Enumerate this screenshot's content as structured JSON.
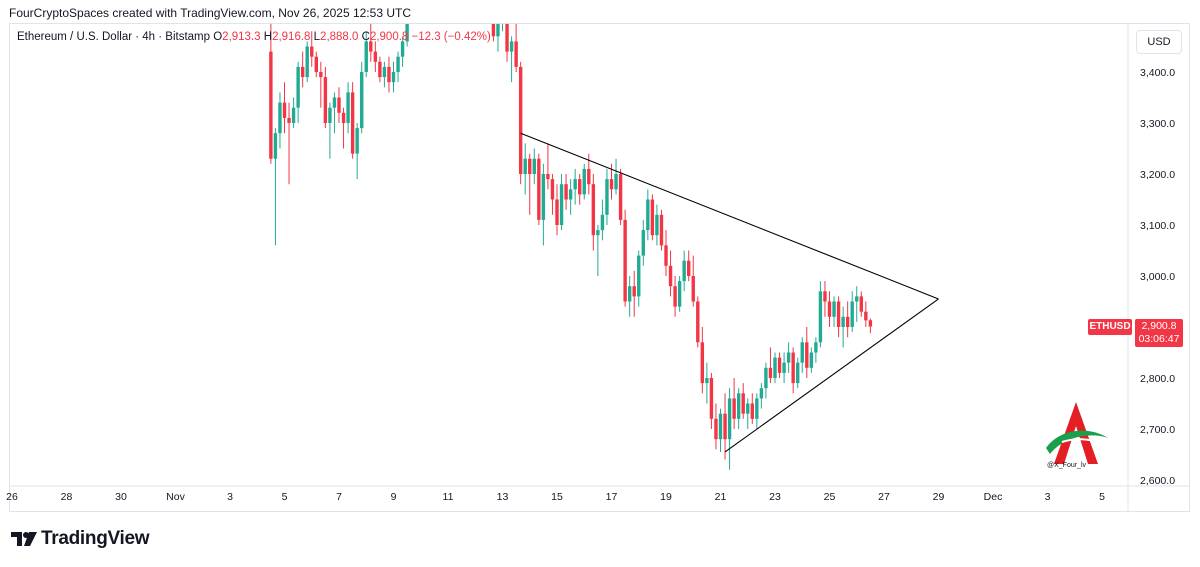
{
  "header": {
    "attribution": "FourCryptoSpaces created with TradingView.com, Nov 26, 2025 12:53 UTC"
  },
  "legend": {
    "symbol": "Ethereum / U.S. Dollar · 4h · Bitstamp",
    "o_label": "O",
    "o_value": "2,913.3",
    "h_label": "H",
    "h_value": "2,916.8",
    "l_label": "L",
    "l_value": "2,888.0",
    "c_label": "C",
    "c_value": "2,900.8",
    "change": "−12.3 (−0.42%)"
  },
  "currency_button": "USD",
  "last_price": {
    "ticker": "ETHUSD",
    "price": "2,900.8",
    "countdown": "03:06:47"
  },
  "watermark_handle": "@X_Four_lv",
  "brand": "TradingView",
  "colors": {
    "up": "#22ab94",
    "down": "#f23645",
    "axis_text": "#131722",
    "trendline": "#000000"
  },
  "chart_data": {
    "type": "candlestick",
    "timeframe": "4h",
    "ylim": [
      2580,
      3500
    ],
    "y_ticks": [
      2600,
      2700,
      2800,
      2900,
      3000,
      3100,
      3200,
      3300,
      3400
    ],
    "y_tick_labels": [
      "2,600.0",
      "2,700.0",
      "2,800.0",
      "2,900.0",
      "3,000.0",
      "3,100.0",
      "3,200.0",
      "3,300.0",
      "3,400.0"
    ],
    "x_ticks": [
      "26",
      "28",
      "30",
      "Nov",
      "3",
      "5",
      "7",
      "9",
      "11",
      "13",
      "15",
      "17",
      "19",
      "21",
      "23",
      "25",
      "27",
      "29",
      "Dec",
      "3",
      "5"
    ],
    "x_tick_dates": [
      "2025-10-26",
      "2025-10-28",
      "2025-10-30",
      "2025-11-01",
      "2025-11-03",
      "2025-11-05",
      "2025-11-07",
      "2025-11-09",
      "2025-11-11",
      "2025-11-13",
      "2025-11-15",
      "2025-11-17",
      "2025-11-19",
      "2025-11-21",
      "2025-11-23",
      "2025-11-25",
      "2025-11-27",
      "2025-11-29",
      "2025-12-01",
      "2025-12-03",
      "2025-12-05"
    ],
    "annotations": [
      {
        "type": "trendline",
        "label": "upper",
        "from": {
          "date": "2025-11-13 16:00",
          "price": 3280
        },
        "to": {
          "date": "2025-11-29 00:00",
          "price": 2955
        }
      },
      {
        "type": "trendline",
        "label": "lower",
        "from": {
          "date": "2025-11-21 04:00",
          "price": 2655
        },
        "to": {
          "date": "2025-11-29 00:00",
          "price": 2955
        }
      }
    ],
    "candles": [
      {
        "t": "2025-11-04 12:00",
        "o": 3440,
        "h": 3550,
        "l": 3220,
        "c": 3230
      },
      {
        "t": "2025-11-04 16:00",
        "o": 3230,
        "h": 3290,
        "l": 3060,
        "c": 3280
      },
      {
        "t": "2025-11-04 20:00",
        "o": 3280,
        "h": 3360,
        "l": 3250,
        "c": 3340
      },
      {
        "t": "2025-11-05 00:00",
        "o": 3340,
        "h": 3380,
        "l": 3280,
        "c": 3310
      },
      {
        "t": "2025-11-05 04:00",
        "o": 3310,
        "h": 3340,
        "l": 3180,
        "c": 3300
      },
      {
        "t": "2025-11-05 08:00",
        "o": 3300,
        "h": 3350,
        "l": 3290,
        "c": 3330
      },
      {
        "t": "2025-11-05 12:00",
        "o": 3330,
        "h": 3420,
        "l": 3300,
        "c": 3410
      },
      {
        "t": "2025-11-05 16:00",
        "o": 3410,
        "h": 3440,
        "l": 3370,
        "c": 3390
      },
      {
        "t": "2025-11-05 20:00",
        "o": 3390,
        "h": 3460,
        "l": 3380,
        "c": 3450
      },
      {
        "t": "2025-11-06 00:00",
        "o": 3450,
        "h": 3480,
        "l": 3410,
        "c": 3430
      },
      {
        "t": "2025-11-06 04:00",
        "o": 3430,
        "h": 3440,
        "l": 3390,
        "c": 3400
      },
      {
        "t": "2025-11-06 08:00",
        "o": 3400,
        "h": 3420,
        "l": 3330,
        "c": 3390
      },
      {
        "t": "2025-11-06 12:00",
        "o": 3390,
        "h": 3410,
        "l": 3290,
        "c": 3300
      },
      {
        "t": "2025-11-06 16:00",
        "o": 3300,
        "h": 3340,
        "l": 3230,
        "c": 3330
      },
      {
        "t": "2025-11-06 20:00",
        "o": 3330,
        "h": 3360,
        "l": 3280,
        "c": 3350
      },
      {
        "t": "2025-11-07 00:00",
        "o": 3350,
        "h": 3370,
        "l": 3300,
        "c": 3320
      },
      {
        "t": "2025-11-07 04:00",
        "o": 3320,
        "h": 3330,
        "l": 3250,
        "c": 3300
      },
      {
        "t": "2025-11-07 08:00",
        "o": 3300,
        "h": 3380,
        "l": 3280,
        "c": 3360
      },
      {
        "t": "2025-11-07 12:00",
        "o": 3360,
        "h": 3380,
        "l": 3230,
        "c": 3240
      },
      {
        "t": "2025-11-07 16:00",
        "o": 3240,
        "h": 3300,
        "l": 3190,
        "c": 3290
      },
      {
        "t": "2025-11-07 20:00",
        "o": 3290,
        "h": 3420,
        "l": 3280,
        "c": 3400
      },
      {
        "t": "2025-11-08 00:00",
        "o": 3400,
        "h": 3480,
        "l": 3390,
        "c": 3460
      },
      {
        "t": "2025-11-08 04:00",
        "o": 3460,
        "h": 3500,
        "l": 3420,
        "c": 3440
      },
      {
        "t": "2025-11-08 08:00",
        "o": 3440,
        "h": 3460,
        "l": 3400,
        "c": 3420
      },
      {
        "t": "2025-11-08 12:00",
        "o": 3420,
        "h": 3430,
        "l": 3380,
        "c": 3390
      },
      {
        "t": "2025-11-08 16:00",
        "o": 3390,
        "h": 3420,
        "l": 3370,
        "c": 3410
      },
      {
        "t": "2025-11-08 20:00",
        "o": 3410,
        "h": 3430,
        "l": 3360,
        "c": 3380
      },
      {
        "t": "2025-11-09 00:00",
        "o": 3380,
        "h": 3420,
        "l": 3360,
        "c": 3400
      },
      {
        "t": "2025-11-09 04:00",
        "o": 3400,
        "h": 3440,
        "l": 3380,
        "c": 3430
      },
      {
        "t": "2025-11-09 08:00",
        "o": 3430,
        "h": 3470,
        "l": 3410,
        "c": 3460
      },
      {
        "t": "2025-11-09 12:00",
        "o": 3460,
        "h": 3540,
        "l": 3450,
        "c": 3520
      },
      {
        "t": "2025-11-12 16:00",
        "o": 3520,
        "h": 3560,
        "l": 3460,
        "c": 3470
      },
      {
        "t": "2025-11-12 20:00",
        "o": 3470,
        "h": 3520,
        "l": 3440,
        "c": 3500
      },
      {
        "t": "2025-11-13 00:00",
        "o": 3500,
        "h": 3540,
        "l": 3480,
        "c": 3510
      },
      {
        "t": "2025-11-13 04:00",
        "o": 3510,
        "h": 3530,
        "l": 3420,
        "c": 3440
      },
      {
        "t": "2025-11-13 08:00",
        "o": 3440,
        "h": 3470,
        "l": 3380,
        "c": 3460
      },
      {
        "t": "2025-11-13 12:00",
        "o": 3460,
        "h": 3500,
        "l": 3400,
        "c": 3410
      },
      {
        "t": "2025-11-13 16:00",
        "o": 3410,
        "h": 3420,
        "l": 3180,
        "c": 3200
      },
      {
        "t": "2025-11-13 20:00",
        "o": 3200,
        "h": 3260,
        "l": 3160,
        "c": 3230
      },
      {
        "t": "2025-11-14 00:00",
        "o": 3230,
        "h": 3240,
        "l": 3120,
        "c": 3200
      },
      {
        "t": "2025-11-14 04:00",
        "o": 3200,
        "h": 3250,
        "l": 3180,
        "c": 3230
      },
      {
        "t": "2025-11-14 08:00",
        "o": 3230,
        "h": 3240,
        "l": 3100,
        "c": 3110
      },
      {
        "t": "2025-11-14 12:00",
        "o": 3110,
        "h": 3220,
        "l": 3060,
        "c": 3200
      },
      {
        "t": "2025-11-14 16:00",
        "o": 3200,
        "h": 3260,
        "l": 3170,
        "c": 3190
      },
      {
        "t": "2025-11-14 20:00",
        "o": 3190,
        "h": 3200,
        "l": 3120,
        "c": 3150
      },
      {
        "t": "2025-11-15 00:00",
        "o": 3150,
        "h": 3180,
        "l": 3080,
        "c": 3100
      },
      {
        "t": "2025-11-15 04:00",
        "o": 3100,
        "h": 3200,
        "l": 3090,
        "c": 3180
      },
      {
        "t": "2025-11-15 08:00",
        "o": 3180,
        "h": 3200,
        "l": 3130,
        "c": 3150
      },
      {
        "t": "2025-11-15 12:00",
        "o": 3150,
        "h": 3190,
        "l": 3120,
        "c": 3170
      },
      {
        "t": "2025-11-15 16:00",
        "o": 3170,
        "h": 3210,
        "l": 3140,
        "c": 3190
      },
      {
        "t": "2025-11-15 20:00",
        "o": 3190,
        "h": 3200,
        "l": 3140,
        "c": 3160
      },
      {
        "t": "2025-11-16 00:00",
        "o": 3160,
        "h": 3220,
        "l": 3150,
        "c": 3210
      },
      {
        "t": "2025-11-16 04:00",
        "o": 3210,
        "h": 3240,
        "l": 3160,
        "c": 3180
      },
      {
        "t": "2025-11-16 08:00",
        "o": 3180,
        "h": 3200,
        "l": 3050,
        "c": 3080
      },
      {
        "t": "2025-11-16 12:00",
        "o": 3080,
        "h": 3100,
        "l": 3000,
        "c": 3090
      },
      {
        "t": "2025-11-16 16:00",
        "o": 3090,
        "h": 3150,
        "l": 3070,
        "c": 3120
      },
      {
        "t": "2025-11-16 20:00",
        "o": 3120,
        "h": 3210,
        "l": 3100,
        "c": 3190
      },
      {
        "t": "2025-11-17 00:00",
        "o": 3190,
        "h": 3220,
        "l": 3150,
        "c": 3170
      },
      {
        "t": "2025-11-17 04:00",
        "o": 3170,
        "h": 3230,
        "l": 3160,
        "c": 3200
      },
      {
        "t": "2025-11-17 08:00",
        "o": 3200,
        "h": 3210,
        "l": 3100,
        "c": 3110
      },
      {
        "t": "2025-11-17 12:00",
        "o": 3110,
        "h": 3130,
        "l": 2940,
        "c": 2950
      },
      {
        "t": "2025-11-17 16:00",
        "o": 2950,
        "h": 3000,
        "l": 2920,
        "c": 2980
      },
      {
        "t": "2025-11-17 20:00",
        "o": 2980,
        "h": 3010,
        "l": 2920,
        "c": 2960
      },
      {
        "t": "2025-11-18 00:00",
        "o": 2960,
        "h": 3050,
        "l": 2940,
        "c": 3040
      },
      {
        "t": "2025-11-18 04:00",
        "o": 3040,
        "h": 3110,
        "l": 3020,
        "c": 3090
      },
      {
        "t": "2025-11-18 08:00",
        "o": 3090,
        "h": 3170,
        "l": 3070,
        "c": 3150
      },
      {
        "t": "2025-11-18 12:00",
        "o": 3150,
        "h": 3160,
        "l": 3070,
        "c": 3080
      },
      {
        "t": "2025-11-18 16:00",
        "o": 3080,
        "h": 3140,
        "l": 3060,
        "c": 3120
      },
      {
        "t": "2025-11-18 20:00",
        "o": 3120,
        "h": 3130,
        "l": 3050,
        "c": 3060
      },
      {
        "t": "2025-11-19 00:00",
        "o": 3060,
        "h": 3090,
        "l": 3000,
        "c": 3020
      },
      {
        "t": "2025-11-19 04:00",
        "o": 3020,
        "h": 3050,
        "l": 2960,
        "c": 2980
      },
      {
        "t": "2025-11-19 08:00",
        "o": 2980,
        "h": 3000,
        "l": 2920,
        "c": 2940
      },
      {
        "t": "2025-11-19 12:00",
        "o": 2940,
        "h": 3000,
        "l": 2930,
        "c": 2990
      },
      {
        "t": "2025-11-19 16:00",
        "o": 2990,
        "h": 3050,
        "l": 2970,
        "c": 3030
      },
      {
        "t": "2025-11-19 20:00",
        "o": 3030,
        "h": 3050,
        "l": 2990,
        "c": 3000
      },
      {
        "t": "2025-11-20 00:00",
        "o": 3000,
        "h": 3040,
        "l": 2940,
        "c": 2950
      },
      {
        "t": "2025-11-20 04:00",
        "o": 2950,
        "h": 2960,
        "l": 2860,
        "c": 2870
      },
      {
        "t": "2025-11-20 08:00",
        "o": 2870,
        "h": 2900,
        "l": 2770,
        "c": 2790
      },
      {
        "t": "2025-11-20 12:00",
        "o": 2790,
        "h": 2830,
        "l": 2750,
        "c": 2800
      },
      {
        "t": "2025-11-20 16:00",
        "o": 2800,
        "h": 2810,
        "l": 2700,
        "c": 2720
      },
      {
        "t": "2025-11-20 20:00",
        "o": 2720,
        "h": 2750,
        "l": 2660,
        "c": 2680
      },
      {
        "t": "2025-11-21 00:00",
        "o": 2680,
        "h": 2740,
        "l": 2655,
        "c": 2730
      },
      {
        "t": "2025-11-21 04:00",
        "o": 2730,
        "h": 2770,
        "l": 2640,
        "c": 2680
      },
      {
        "t": "2025-11-21 08:00",
        "o": 2680,
        "h": 2780,
        "l": 2620,
        "c": 2760
      },
      {
        "t": "2025-11-21 12:00",
        "o": 2760,
        "h": 2800,
        "l": 2700,
        "c": 2720
      },
      {
        "t": "2025-11-21 16:00",
        "o": 2720,
        "h": 2780,
        "l": 2700,
        "c": 2770
      },
      {
        "t": "2025-11-21 20:00",
        "o": 2770,
        "h": 2790,
        "l": 2720,
        "c": 2730
      },
      {
        "t": "2025-11-22 00:00",
        "o": 2730,
        "h": 2760,
        "l": 2700,
        "c": 2750
      },
      {
        "t": "2025-11-22 04:00",
        "o": 2750,
        "h": 2770,
        "l": 2710,
        "c": 2720
      },
      {
        "t": "2025-11-22 08:00",
        "o": 2720,
        "h": 2770,
        "l": 2700,
        "c": 2760
      },
      {
        "t": "2025-11-22 12:00",
        "o": 2760,
        "h": 2790,
        "l": 2740,
        "c": 2780
      },
      {
        "t": "2025-11-22 16:00",
        "o": 2780,
        "h": 2830,
        "l": 2760,
        "c": 2820
      },
      {
        "t": "2025-11-22 20:00",
        "o": 2820,
        "h": 2860,
        "l": 2790,
        "c": 2800
      },
      {
        "t": "2025-11-23 00:00",
        "o": 2800,
        "h": 2850,
        "l": 2790,
        "c": 2840
      },
      {
        "t": "2025-11-23 04:00",
        "o": 2840,
        "h": 2850,
        "l": 2800,
        "c": 2810
      },
      {
        "t": "2025-11-23 08:00",
        "o": 2810,
        "h": 2850,
        "l": 2790,
        "c": 2830
      },
      {
        "t": "2025-11-23 12:00",
        "o": 2830,
        "h": 2870,
        "l": 2810,
        "c": 2850
      },
      {
        "t": "2025-11-23 16:00",
        "o": 2850,
        "h": 2860,
        "l": 2770,
        "c": 2790
      },
      {
        "t": "2025-11-23 20:00",
        "o": 2790,
        "h": 2840,
        "l": 2780,
        "c": 2830
      },
      {
        "t": "2025-11-24 00:00",
        "o": 2830,
        "h": 2880,
        "l": 2810,
        "c": 2870
      },
      {
        "t": "2025-11-24 04:00",
        "o": 2870,
        "h": 2900,
        "l": 2800,
        "c": 2820
      },
      {
        "t": "2025-11-24 08:00",
        "o": 2820,
        "h": 2860,
        "l": 2810,
        "c": 2850
      },
      {
        "t": "2025-11-24 12:00",
        "o": 2850,
        "h": 2880,
        "l": 2830,
        "c": 2870
      },
      {
        "t": "2025-11-24 16:00",
        "o": 2870,
        "h": 2990,
        "l": 2860,
        "c": 2970
      },
      {
        "t": "2025-11-24 20:00",
        "o": 2970,
        "h": 2990,
        "l": 2920,
        "c": 2950
      },
      {
        "t": "2025-11-25 00:00",
        "o": 2950,
        "h": 2970,
        "l": 2900,
        "c": 2920
      },
      {
        "t": "2025-11-25 04:00",
        "o": 2920,
        "h": 2960,
        "l": 2900,
        "c": 2950
      },
      {
        "t": "2025-11-25 08:00",
        "o": 2950,
        "h": 2960,
        "l": 2880,
        "c": 2900
      },
      {
        "t": "2025-11-25 12:00",
        "o": 2900,
        "h": 2940,
        "l": 2860,
        "c": 2920
      },
      {
        "t": "2025-11-25 16:00",
        "o": 2920,
        "h": 2950,
        "l": 2880,
        "c": 2900
      },
      {
        "t": "2025-11-25 20:00",
        "o": 2900,
        "h": 2970,
        "l": 2890,
        "c": 2950
      },
      {
        "t": "2025-11-26 00:00",
        "o": 2950,
        "h": 2980,
        "l": 2910,
        "c": 2960
      },
      {
        "t": "2025-11-26 04:00",
        "o": 2960,
        "h": 2970,
        "l": 2920,
        "c": 2930
      },
      {
        "t": "2025-11-26 08:00",
        "o": 2930,
        "h": 2950,
        "l": 2900,
        "c": 2913
      },
      {
        "t": "2025-11-26 12:00",
        "o": 2913.3,
        "h": 2916.8,
        "l": 2888.0,
        "c": 2900.8
      }
    ]
  }
}
